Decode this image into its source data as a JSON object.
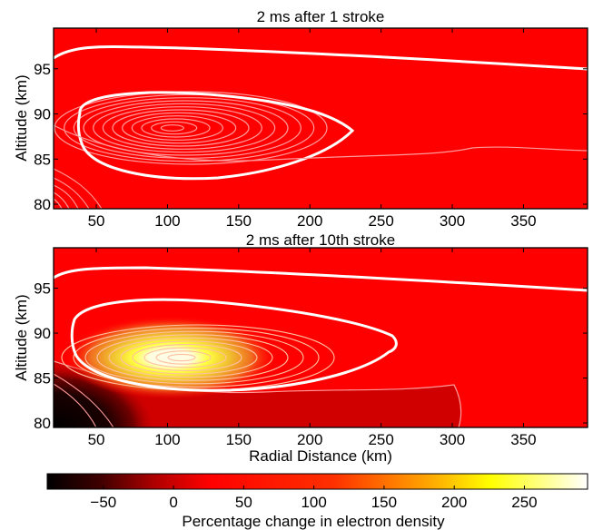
{
  "chart_data": [
    {
      "type": "heatmap",
      "title": "2 ms after 1 stroke",
      "xlabel": "",
      "ylabel": "Altitude  (km)",
      "xlim": [
        20,
        395
      ],
      "ylim": [
        79.5,
        99.5
      ],
      "x_ticks": [
        "50",
        "100",
        "150",
        "200",
        "250",
        "300",
        "350"
      ],
      "y_ticks": [
        "80",
        "85",
        "90",
        "95"
      ],
      "background_value_percent": 0,
      "features": [
        {
          "kind": "thick-contour",
          "description_values": {
            "x_range": [
              20,
              395
            ],
            "altitude_start": 96.5,
            "altitude_end": 94.8
          }
        },
        {
          "kind": "closed-contour-set",
          "center": [
            100,
            88.6
          ],
          "outer_x_range": [
            20,
            232
          ],
          "outer_alt_range": [
            81.5,
            93.2
          ],
          "peak_percent": 5
        },
        {
          "kind": "thin-contour",
          "description_values": {
            "x_range": [
              20,
              395
            ],
            "altitude_start": 85.2,
            "altitude_end": 85.7
          }
        },
        {
          "kind": "corner-contours",
          "corner": "bottom-left",
          "min_percent": -10
        }
      ]
    },
    {
      "type": "heatmap",
      "title": "2 ms after 10th stroke",
      "xlabel": "Radial Distance (km)",
      "ylabel": "Altitude  (km)",
      "xlim": [
        20,
        395
      ],
      "ylim": [
        79.5,
        99.5
      ],
      "x_ticks": [
        "50",
        "100",
        "150",
        "200",
        "250",
        "300",
        "350"
      ],
      "y_ticks": [
        "80",
        "85",
        "90",
        "95"
      ],
      "background_value_percent": 0,
      "features": [
        {
          "kind": "thick-contour",
          "description_values": {
            "x_range": [
              20,
              395
            ],
            "altitude_start": 96.3,
            "altitude_end": 94.3
          }
        },
        {
          "kind": "enhancement-blob",
          "center": [
            100,
            87.2
          ],
          "outer_x_range": [
            20,
            260
          ],
          "outer_alt_range": [
            82.0,
            92.5
          ],
          "peak_percent": 290
        },
        {
          "kind": "depletion-region",
          "x_range": [
            20,
            305
          ],
          "alt_range": [
            79.5,
            84.3
          ],
          "min_percent": -30
        },
        {
          "kind": "depletion-corner",
          "corner": "bottom-left",
          "min_percent": -90
        }
      ]
    }
  ],
  "colorbar": {
    "label": "Percentage change in electron density",
    "ticks": [
      "−50",
      "0",
      "50",
      "100",
      "150",
      "200",
      "250"
    ],
    "tick_values": [
      -50,
      0,
      50,
      100,
      150,
      200,
      250
    ],
    "range": [
      -90,
      295
    ],
    "colormap": "hot",
    "colors": [
      "#000000",
      "#800000",
      "#ff0000",
      "#ff8000",
      "#ffff00",
      "#ffffff"
    ]
  }
}
